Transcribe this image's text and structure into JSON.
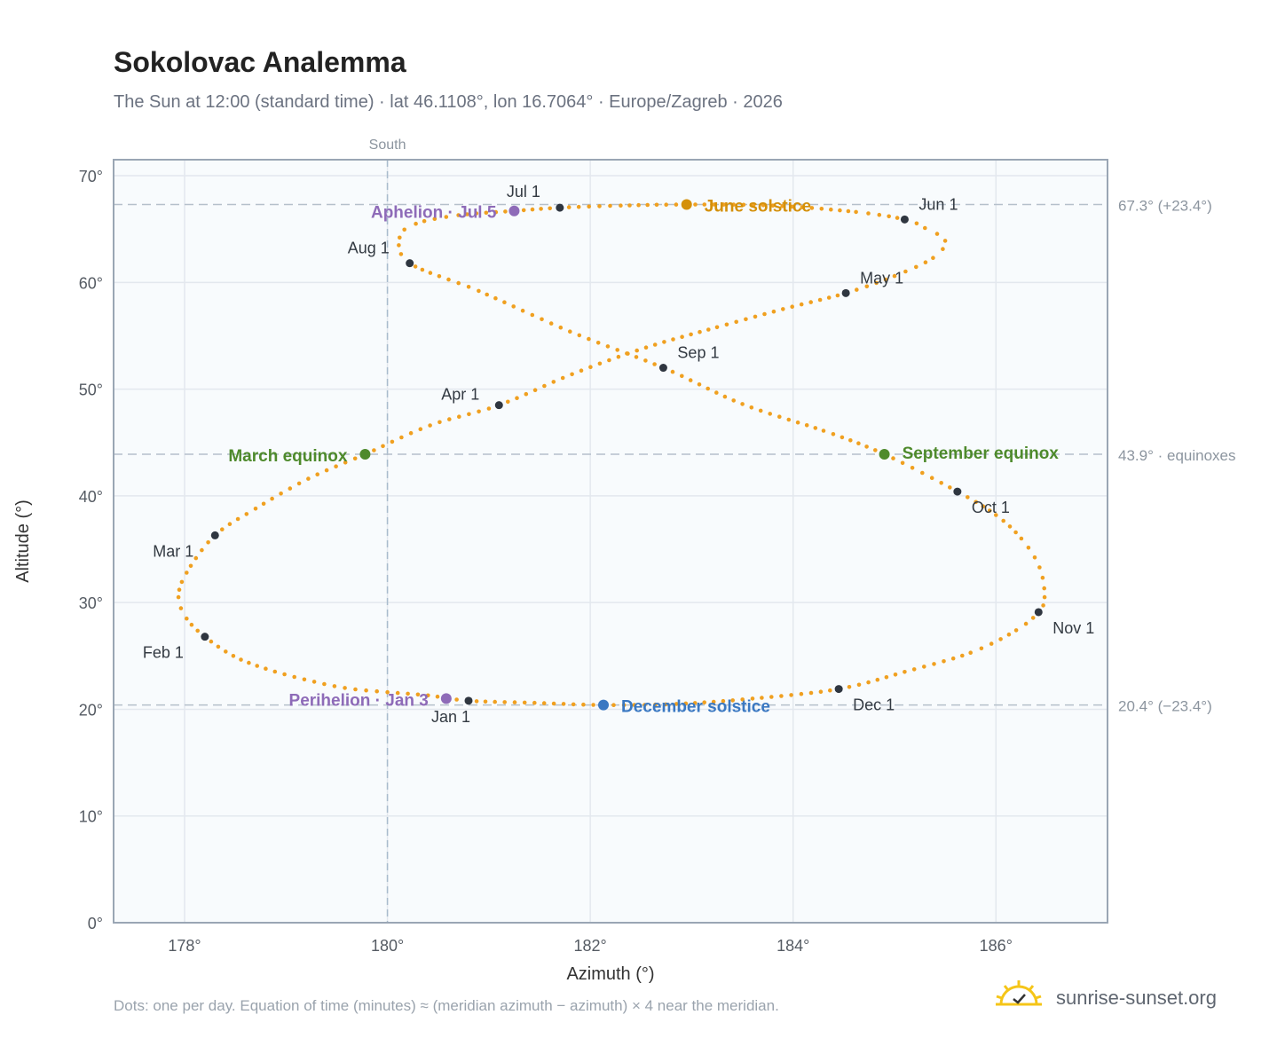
{
  "title": "Sokolovac Analemma",
  "subtitle": "The Sun at 12:00 (standard time) · lat 46.1108°, lon 16.7064° · Europe/Zagreb · 2026",
  "footer": "Dots: one per day. Equation of time (minutes) ≈ (meridian azimuth − azimuth) × 4 near the meridian.",
  "brand": {
    "text": "sunrise-sunset.org",
    "icon": "sun-logo-icon"
  },
  "chart_data": {
    "type": "scatter",
    "title": "Sokolovac Analemma",
    "xlabel": "Azimuth (°)",
    "ylabel": "Altitude (°)",
    "xlim": [
      177.3,
      187.1
    ],
    "ylim": [
      0,
      71.5
    ],
    "xticks": [
      178,
      180,
      182,
      184,
      186
    ],
    "xtick_labels": [
      "178°",
      "180°",
      "182°",
      "184°",
      "186°"
    ],
    "yticks": [
      0,
      10,
      20,
      30,
      40,
      50,
      60,
      70
    ],
    "ytick_labels": [
      "0°",
      "10°",
      "20°",
      "30°",
      "40°",
      "50°",
      "60°",
      "70°"
    ],
    "grid": true,
    "meridian": {
      "x": 180,
      "label": "South"
    },
    "reference_lines": [
      {
        "y": 67.3,
        "label": "67.3° (+23.4°)"
      },
      {
        "y": 43.9,
        "label": "43.9° · equinoxes"
      },
      {
        "y": 20.4,
        "label": "20.4° (−23.4°)"
      }
    ],
    "series": [
      {
        "point_color": "#f0a020",
        "note": "one dot per day",
        "points": [
          [
            180.8,
            20.8
          ],
          [
            180.4,
            21.3
          ],
          [
            180.0,
            21.6
          ],
          [
            179.58,
            22.0
          ],
          [
            179.18,
            22.8
          ],
          [
            178.8,
            23.8
          ],
          [
            178.48,
            25.0
          ],
          [
            178.2,
            26.8
          ],
          [
            178.02,
            28.5
          ],
          [
            177.94,
            30.5
          ],
          [
            178.02,
            32.8
          ],
          [
            178.3,
            36.3
          ],
          [
            178.7,
            38.8
          ],
          [
            179.22,
            41.6
          ],
          [
            179.78,
            43.9
          ],
          [
            180.42,
            46.6
          ],
          [
            181.1,
            48.5
          ],
          [
            181.82,
            51.4
          ],
          [
            182.55,
            53.9
          ],
          [
            183.25,
            55.8
          ],
          [
            183.9,
            57.5
          ],
          [
            184.52,
            59.0
          ],
          [
            185.0,
            60.6
          ],
          [
            185.38,
            62.3
          ],
          [
            185.5,
            63.9
          ],
          [
            185.3,
            65.1
          ],
          [
            185.1,
            65.9
          ],
          [
            184.62,
            66.6
          ],
          [
            183.8,
            67.2
          ],
          [
            182.95,
            67.3
          ],
          [
            182.3,
            67.2
          ],
          [
            181.7,
            67.0
          ],
          [
            181.25,
            66.7
          ],
          [
            180.7,
            66.3
          ],
          [
            180.28,
            65.5
          ],
          [
            180.12,
            64.2
          ],
          [
            180.22,
            61.8
          ],
          [
            180.9,
            59.2
          ],
          [
            181.8,
            55.4
          ],
          [
            182.72,
            52.0
          ],
          [
            183.5,
            48.6
          ],
          [
            184.3,
            46.1
          ],
          [
            184.9,
            43.9
          ],
          [
            185.62,
            40.4
          ],
          [
            186.0,
            38.2
          ],
          [
            186.25,
            36.0
          ],
          [
            186.43,
            33.3
          ],
          [
            186.48,
            30.5
          ],
          [
            186.42,
            29.1
          ],
          [
            186.2,
            27.4
          ],
          [
            185.75,
            25.3
          ],
          [
            185.1,
            23.5
          ],
          [
            184.45,
            21.9
          ],
          [
            183.6,
            21.0
          ],
          [
            182.85,
            20.5
          ],
          [
            182.13,
            20.4
          ],
          [
            181.45,
            20.6
          ],
          [
            180.8,
            20.8
          ]
        ]
      }
    ],
    "month_markers": [
      {
        "label": "Jan 1",
        "x": 180.8,
        "y": 20.8
      },
      {
        "label": "Feb 1",
        "x": 178.2,
        "y": 26.8
      },
      {
        "label": "Mar 1",
        "x": 178.3,
        "y": 36.3
      },
      {
        "label": "Apr 1",
        "x": 181.1,
        "y": 48.5
      },
      {
        "label": "May 1",
        "x": 184.52,
        "y": 59.0
      },
      {
        "label": "Jun 1",
        "x": 185.1,
        "y": 65.9
      },
      {
        "label": "Jul 1",
        "x": 181.7,
        "y": 67.0
      },
      {
        "label": "Aug 1",
        "x": 180.22,
        "y": 61.8
      },
      {
        "label": "Sep 1",
        "x": 182.72,
        "y": 52.0
      },
      {
        "label": "Oct 1",
        "x": 185.62,
        "y": 40.4
      },
      {
        "label": "Nov 1",
        "x": 186.42,
        "y": 29.1
      },
      {
        "label": "Dec 1",
        "x": 184.45,
        "y": 21.9
      }
    ],
    "events": [
      {
        "label": "June solstice",
        "x": 182.95,
        "y": 67.3,
        "color": "#d4900a"
      },
      {
        "label": "December solstice",
        "x": 182.13,
        "y": 20.4,
        "color": "#3a78c2"
      },
      {
        "label": "March equinox",
        "x": 179.78,
        "y": 43.9,
        "color": "#4e8a2c"
      },
      {
        "label": "September equinox",
        "x": 184.9,
        "y": 43.9,
        "color": "#4e8a2c"
      },
      {
        "label": "Aphelion · Jul 5",
        "x": 181.25,
        "y": 66.7,
        "color": "#8e6bb8"
      },
      {
        "label": "Perihelion · Jan 3",
        "x": 180.58,
        "y": 21.0,
        "color": "#8e6bb8"
      }
    ]
  }
}
